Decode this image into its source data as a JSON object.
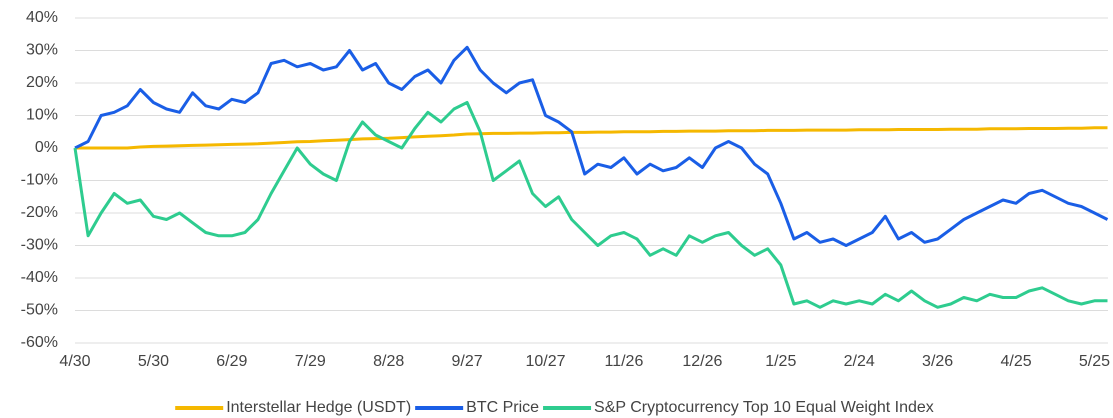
{
  "chart_data": {
    "type": "line",
    "categories": [
      "4/30",
      null,
      null,
      null,
      null,
      null,
      "5/30",
      null,
      null,
      null,
      null,
      null,
      "6/29",
      null,
      null,
      null,
      null,
      null,
      "7/29",
      null,
      null,
      null,
      null,
      null,
      "8/28",
      null,
      null,
      null,
      null,
      null,
      "9/27",
      null,
      null,
      null,
      null,
      null,
      "10/27",
      null,
      null,
      null,
      null,
      null,
      "11/26",
      null,
      null,
      null,
      null,
      null,
      "12/26",
      null,
      null,
      null,
      null,
      null,
      "1/25",
      null,
      null,
      null,
      null,
      null,
      "2/24",
      null,
      null,
      null,
      null,
      null,
      "3/26",
      null,
      null,
      null,
      null,
      null,
      "4/25",
      null,
      null,
      null,
      null,
      null,
      "5/25",
      null
    ],
    "series": [
      {
        "name": "Interstellar Hedge (USDT)",
        "color": "#f5b800",
        "values": [
          0,
          0,
          0,
          0,
          0,
          0.3,
          0.5,
          0.6,
          0.7,
          0.8,
          0.9,
          1,
          1.1,
          1.2,
          1.3,
          1.5,
          1.7,
          1.9,
          2,
          2.2,
          2.4,
          2.6,
          2.8,
          2.9,
          3,
          3.2,
          3.4,
          3.6,
          3.8,
          4,
          4.3,
          4.4,
          4.5,
          4.5,
          4.6,
          4.6,
          4.7,
          4.7,
          4.8,
          4.8,
          4.9,
          4.9,
          5,
          5,
          5,
          5.1,
          5.1,
          5.2,
          5.2,
          5.2,
          5.3,
          5.3,
          5.3,
          5.4,
          5.4,
          5.4,
          5.5,
          5.5,
          5.5,
          5.5,
          5.6,
          5.6,
          5.6,
          5.7,
          5.7,
          5.7,
          5.7,
          5.8,
          5.8,
          5.8,
          5.9,
          5.9,
          5.9,
          6,
          6,
          6,
          6.1,
          6.1,
          6.2,
          6.2
        ]
      },
      {
        "name": "BTC Price",
        "color": "#1a5ee6",
        "values": [
          0,
          2,
          10,
          11,
          13,
          18,
          14,
          12,
          11,
          17,
          13,
          12,
          15,
          14,
          17,
          26,
          27,
          25,
          26,
          24,
          25,
          30,
          24,
          26,
          20,
          18,
          22,
          24,
          20,
          27,
          31,
          24,
          20,
          17,
          20,
          21,
          10,
          8,
          5,
          -8,
          -5,
          -6,
          -3,
          -8,
          -5,
          -7,
          -6,
          -3,
          -6,
          0,
          2,
          0,
          -5,
          -8,
          -17,
          -28,
          -26,
          -29,
          -28,
          -30,
          -28,
          -26,
          -21,
          -28,
          -26,
          -29,
          -28,
          -25,
          -22,
          -20,
          -18,
          -16,
          -17,
          -14,
          -13,
          -15,
          -17,
          -18,
          -20,
          -22
        ]
      },
      {
        "name": "S&P Cryptocurrency Top 10 Equal Weight Index",
        "color": "#2ecc8f",
        "values": [
          0,
          -27,
          -20,
          -14,
          -17,
          -16,
          -21,
          -22,
          -20,
          -23,
          -26,
          -27,
          -27,
          -26,
          -22,
          -14,
          -7,
          0,
          -5,
          -8,
          -10,
          2,
          8,
          4,
          2,
          0,
          6,
          11,
          8,
          12,
          14,
          5,
          -10,
          -7,
          -4,
          -14,
          -18,
          -15,
          -22,
          -26,
          -30,
          -27,
          -26,
          -28,
          -33,
          -31,
          -33,
          -27,
          -29,
          -27,
          -26,
          -30,
          -33,
          -31,
          -36,
          -48,
          -47,
          -49,
          -47,
          -48,
          -47,
          -48,
          -45,
          -47,
          -44,
          -47,
          -49,
          -48,
          -46,
          -47,
          -45,
          -46,
          -46,
          -44,
          -43,
          -45,
          -47,
          -48,
          -47,
          -47
        ]
      }
    ],
    "ylim": [
      -60,
      40
    ],
    "yticks": [
      {
        "value": -60,
        "label": "-60%"
      },
      {
        "value": -50,
        "label": "-50%"
      },
      {
        "value": -40,
        "label": "-40%"
      },
      {
        "value": -30,
        "label": "-30%"
      },
      {
        "value": -20,
        "label": "-20%"
      },
      {
        "value": -10,
        "label": "-10%"
      },
      {
        "value": 0,
        "label": "0%"
      },
      {
        "value": 10,
        "label": "10%"
      },
      {
        "value": 20,
        "label": "20%"
      },
      {
        "value": 30,
        "label": "30%"
      },
      {
        "value": 40,
        "label": "40%"
      }
    ],
    "grid": true,
    "legend": "bottom"
  }
}
